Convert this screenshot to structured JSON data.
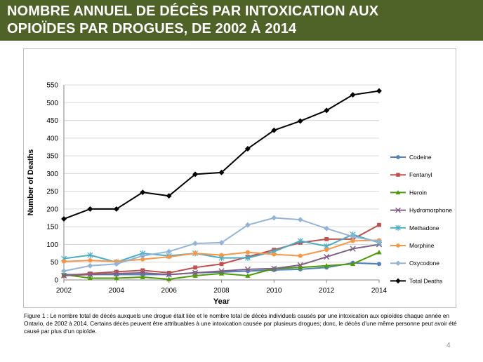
{
  "slide": {
    "title": "NOMBRE ANNUEL DE DÉCÈS PAR INTOXICATION AUX\nOPIOÏDES PAR DROGUES, DE 2002 À 2014",
    "caption": "Figure 1 : Le nombre total de décès auxquels une drogue était liée et le nombre total de décès individuels causés par une intoxication aux opioïdes chaque année en Ontario, de 2002 à 2014. Certains décès peuvent être attribuables à une intoxication causée par plusieurs drogues; donc, le décès d’une même personne peut avoir été causé par plus d’un opioïde.",
    "page_number": "4"
  },
  "chart_data": {
    "type": "line",
    "title": "",
    "xlabel": "Year",
    "ylabel": "Number of Deaths",
    "x": [
      2002,
      2003,
      2004,
      2005,
      2006,
      2007,
      2008,
      2009,
      2010,
      2011,
      2012,
      2013,
      2014
    ],
    "xlim": [
      2002,
      2014
    ],
    "ylim": [
      0,
      550
    ],
    "x_ticks": [
      2002,
      2004,
      2006,
      2008,
      2010,
      2012,
      2014
    ],
    "y_ticks": [
      0,
      50,
      100,
      150,
      200,
      250,
      300,
      350,
      400,
      450,
      500,
      550
    ],
    "grid": "horizontal",
    "legend_position": "right",
    "series": [
      {
        "name": "Codeine",
        "color": "#4f81bd",
        "marker": "circle",
        "values": [
          15,
          15,
          15,
          15,
          15,
          20,
          22,
          25,
          28,
          30,
          35,
          48,
          45
        ]
      },
      {
        "name": "Fentanyl",
        "color": "#c0504d",
        "marker": "square",
        "values": [
          12,
          18,
          23,
          27,
          20,
          35,
          45,
          65,
          85,
          105,
          115,
          115,
          155
        ]
      },
      {
        "name": "Heroin",
        "color": "#4e9a06",
        "marker": "triangle",
        "values": [
          15,
          5,
          5,
          8,
          2,
          12,
          18,
          12,
          32,
          35,
          40,
          45,
          78
        ]
      },
      {
        "name": "Hydromorphone",
        "color": "#7f6084",
        "marker": "x",
        "values": [
          12,
          15,
          18,
          20,
          15,
          20,
          25,
          30,
          32,
          42,
          65,
          88,
          100
        ]
      },
      {
        "name": "Methadone",
        "color": "#4bacc6",
        "marker": "star",
        "values": [
          60,
          70,
          50,
          75,
          68,
          75,
          62,
          62,
          80,
          110,
          95,
          128,
          105
        ]
      },
      {
        "name": "Morphine",
        "color": "#f79646",
        "marker": "circle",
        "values": [
          52,
          55,
          52,
          58,
          65,
          75,
          70,
          78,
          72,
          68,
          85,
          110,
          112
        ]
      },
      {
        "name": "Oxycodone",
        "color": "#95b3d7",
        "marker": "diamond",
        "values": [
          25,
          40,
          45,
          68,
          80,
          103,
          105,
          155,
          175,
          170,
          145,
          122,
          108
        ]
      },
      {
        "name": "Total Deaths",
        "color": "#000000",
        "marker": "diamond",
        "values": [
          172,
          200,
          200,
          247,
          237,
          298,
          303,
          370,
          422,
          448,
          478,
          522,
          533
        ]
      }
    ]
  }
}
